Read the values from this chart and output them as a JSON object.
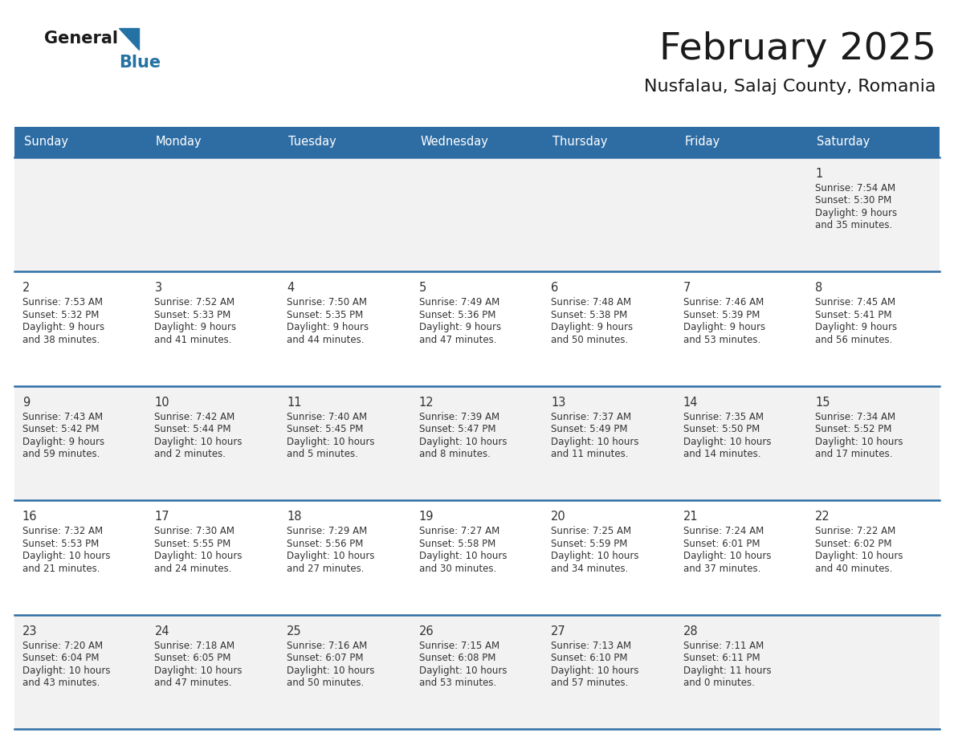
{
  "title": "February 2025",
  "subtitle": "Nusfalau, Salaj County, Romania",
  "days_of_week": [
    "Sunday",
    "Monday",
    "Tuesday",
    "Wednesday",
    "Thursday",
    "Friday",
    "Saturday"
  ],
  "header_bg": "#2E6DA4",
  "header_text": "#FFFFFF",
  "cell_bg_light": "#F2F2F2",
  "cell_bg_white": "#FFFFFF",
  "row_line_color": "#2E6DA4",
  "cell_text_color": "#333333",
  "day_num_color": "#333333",
  "title_color": "#1a1a1a",
  "subtitle_color": "#1a1a1a",
  "logo_general_color": "#1a1a1a",
  "logo_blue_color": "#2472A4",
  "calendar_data": [
    [
      {
        "day": null,
        "info": ""
      },
      {
        "day": null,
        "info": ""
      },
      {
        "day": null,
        "info": ""
      },
      {
        "day": null,
        "info": ""
      },
      {
        "day": null,
        "info": ""
      },
      {
        "day": null,
        "info": ""
      },
      {
        "day": 1,
        "info": "Sunrise: 7:54 AM\nSunset: 5:30 PM\nDaylight: 9 hours\nand 35 minutes."
      }
    ],
    [
      {
        "day": 2,
        "info": "Sunrise: 7:53 AM\nSunset: 5:32 PM\nDaylight: 9 hours\nand 38 minutes."
      },
      {
        "day": 3,
        "info": "Sunrise: 7:52 AM\nSunset: 5:33 PM\nDaylight: 9 hours\nand 41 minutes."
      },
      {
        "day": 4,
        "info": "Sunrise: 7:50 AM\nSunset: 5:35 PM\nDaylight: 9 hours\nand 44 minutes."
      },
      {
        "day": 5,
        "info": "Sunrise: 7:49 AM\nSunset: 5:36 PM\nDaylight: 9 hours\nand 47 minutes."
      },
      {
        "day": 6,
        "info": "Sunrise: 7:48 AM\nSunset: 5:38 PM\nDaylight: 9 hours\nand 50 minutes."
      },
      {
        "day": 7,
        "info": "Sunrise: 7:46 AM\nSunset: 5:39 PM\nDaylight: 9 hours\nand 53 minutes."
      },
      {
        "day": 8,
        "info": "Sunrise: 7:45 AM\nSunset: 5:41 PM\nDaylight: 9 hours\nand 56 minutes."
      }
    ],
    [
      {
        "day": 9,
        "info": "Sunrise: 7:43 AM\nSunset: 5:42 PM\nDaylight: 9 hours\nand 59 minutes."
      },
      {
        "day": 10,
        "info": "Sunrise: 7:42 AM\nSunset: 5:44 PM\nDaylight: 10 hours\nand 2 minutes."
      },
      {
        "day": 11,
        "info": "Sunrise: 7:40 AM\nSunset: 5:45 PM\nDaylight: 10 hours\nand 5 minutes."
      },
      {
        "day": 12,
        "info": "Sunrise: 7:39 AM\nSunset: 5:47 PM\nDaylight: 10 hours\nand 8 minutes."
      },
      {
        "day": 13,
        "info": "Sunrise: 7:37 AM\nSunset: 5:49 PM\nDaylight: 10 hours\nand 11 minutes."
      },
      {
        "day": 14,
        "info": "Sunrise: 7:35 AM\nSunset: 5:50 PM\nDaylight: 10 hours\nand 14 minutes."
      },
      {
        "day": 15,
        "info": "Sunrise: 7:34 AM\nSunset: 5:52 PM\nDaylight: 10 hours\nand 17 minutes."
      }
    ],
    [
      {
        "day": 16,
        "info": "Sunrise: 7:32 AM\nSunset: 5:53 PM\nDaylight: 10 hours\nand 21 minutes."
      },
      {
        "day": 17,
        "info": "Sunrise: 7:30 AM\nSunset: 5:55 PM\nDaylight: 10 hours\nand 24 minutes."
      },
      {
        "day": 18,
        "info": "Sunrise: 7:29 AM\nSunset: 5:56 PM\nDaylight: 10 hours\nand 27 minutes."
      },
      {
        "day": 19,
        "info": "Sunrise: 7:27 AM\nSunset: 5:58 PM\nDaylight: 10 hours\nand 30 minutes."
      },
      {
        "day": 20,
        "info": "Sunrise: 7:25 AM\nSunset: 5:59 PM\nDaylight: 10 hours\nand 34 minutes."
      },
      {
        "day": 21,
        "info": "Sunrise: 7:24 AM\nSunset: 6:01 PM\nDaylight: 10 hours\nand 37 minutes."
      },
      {
        "day": 22,
        "info": "Sunrise: 7:22 AM\nSunset: 6:02 PM\nDaylight: 10 hours\nand 40 minutes."
      }
    ],
    [
      {
        "day": 23,
        "info": "Sunrise: 7:20 AM\nSunset: 6:04 PM\nDaylight: 10 hours\nand 43 minutes."
      },
      {
        "day": 24,
        "info": "Sunrise: 7:18 AM\nSunset: 6:05 PM\nDaylight: 10 hours\nand 47 minutes."
      },
      {
        "day": 25,
        "info": "Sunrise: 7:16 AM\nSunset: 6:07 PM\nDaylight: 10 hours\nand 50 minutes."
      },
      {
        "day": 26,
        "info": "Sunrise: 7:15 AM\nSunset: 6:08 PM\nDaylight: 10 hours\nand 53 minutes."
      },
      {
        "day": 27,
        "info": "Sunrise: 7:13 AM\nSunset: 6:10 PM\nDaylight: 10 hours\nand 57 minutes."
      },
      {
        "day": 28,
        "info": "Sunrise: 7:11 AM\nSunset: 6:11 PM\nDaylight: 11 hours\nand 0 minutes."
      },
      {
        "day": null,
        "info": ""
      }
    ]
  ],
  "row_bg_colors": [
    "#F2F2F2",
    "#FFFFFF",
    "#F2F2F2",
    "#FFFFFF",
    "#F2F2F2"
  ]
}
